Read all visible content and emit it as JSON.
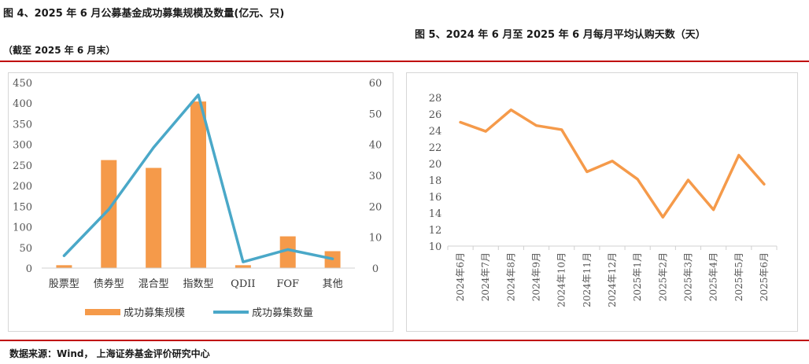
{
  "header": {
    "left_title": "图 4、2025 年 6 月公募基金成功募集规模及数量(亿元、只)",
    "left_note": "（截至 2025 年 6 月末）",
    "right_title": "图 5、2024 年 6 月至 2025 年 6 月每月平均认购天数（天）"
  },
  "footer": {
    "source": "数据来源：Wind，  上海证券基金评价研究中心"
  },
  "colors": {
    "bar": "#f59a4a",
    "line": "#4aa8c8",
    "line_right": "#f59a4a",
    "rule": "#c00000"
  },
  "chart_data": [
    {
      "type": "bar+line",
      "categories": [
        "股票型",
        "债券型",
        "混合型",
        "指数型",
        "QDII",
        "FOF",
        "其他"
      ],
      "series": [
        {
          "name": "成功募集规模",
          "type": "bar",
          "axis": "left",
          "values": [
            7,
            262,
            243,
            404,
            7,
            77,
            41
          ]
        },
        {
          "name": "成功募集数量",
          "type": "line",
          "axis": "right",
          "values": [
            4,
            19,
            39,
            56,
            2,
            6,
            3
          ]
        }
      ],
      "y_left": {
        "min": 0,
        "max": 450,
        "step": 50,
        "ticks": [
          "0",
          "50",
          "100",
          "150",
          "200",
          "250",
          "300",
          "350",
          "400",
          "450"
        ]
      },
      "y_right": {
        "min": 0,
        "max": 60,
        "step": 10,
        "ticks": [
          "0",
          "10",
          "20",
          "30",
          "40",
          "50",
          "60"
        ]
      },
      "legend": "bottom",
      "grid": false
    },
    {
      "type": "line",
      "categories": [
        "2024年6月",
        "2024年7月",
        "2024年8月",
        "2024年9月",
        "2024年10月",
        "2024年11月",
        "2024年12月",
        "2025年1月",
        "2025年2月",
        "2025年3月",
        "2025年4月",
        "2025年5月",
        "2025年6月"
      ],
      "series": [
        {
          "values": [
            25.0,
            23.9,
            26.5,
            24.6,
            24.1,
            19.0,
            20.3,
            18.1,
            13.5,
            18.0,
            14.4,
            21.0,
            17.5
          ]
        }
      ],
      "y": {
        "min": 10,
        "max": 28,
        "step": 2,
        "ticks": [
          "10",
          "12",
          "14",
          "16",
          "18",
          "20",
          "22",
          "24",
          "26",
          "28"
        ]
      },
      "legend": "none",
      "grid": false
    }
  ]
}
